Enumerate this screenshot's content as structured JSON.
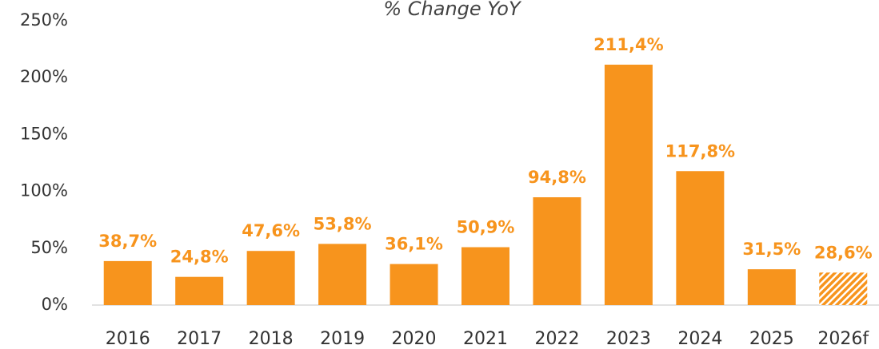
{
  "chart_data": {
    "type": "bar",
    "title": "% Change YoY",
    "categories": [
      "2016",
      "2017",
      "2018",
      "2019",
      "2020",
      "2021",
      "2022",
      "2023",
      "2024",
      "2025",
      "2026f"
    ],
    "values": [
      38.7,
      24.8,
      47.6,
      53.8,
      36.1,
      50.9,
      94.8,
      211.4,
      117.8,
      31.5,
      28.6
    ],
    "value_labels": [
      "38,7%",
      "24,8%",
      "47,6%",
      "53,8%",
      "36,1%",
      "50,9%",
      "94,8%",
      "211,4%",
      "117,8%",
      "31,5%",
      "28,6%"
    ],
    "hatched": [
      false,
      false,
      false,
      false,
      false,
      false,
      false,
      false,
      false,
      false,
      true
    ],
    "color": "#f7941d",
    "ylim": [
      0,
      250
    ],
    "yticks": [
      {
        "value": 0,
        "label": "0%"
      },
      {
        "value": 50,
        "label": "50%"
      },
      {
        "value": 100,
        "label": "100%"
      },
      {
        "value": 150,
        "label": "150%"
      },
      {
        "value": 200,
        "label": "200%"
      },
      {
        "value": 250,
        "label": "250%"
      }
    ],
    "grid": false
  }
}
